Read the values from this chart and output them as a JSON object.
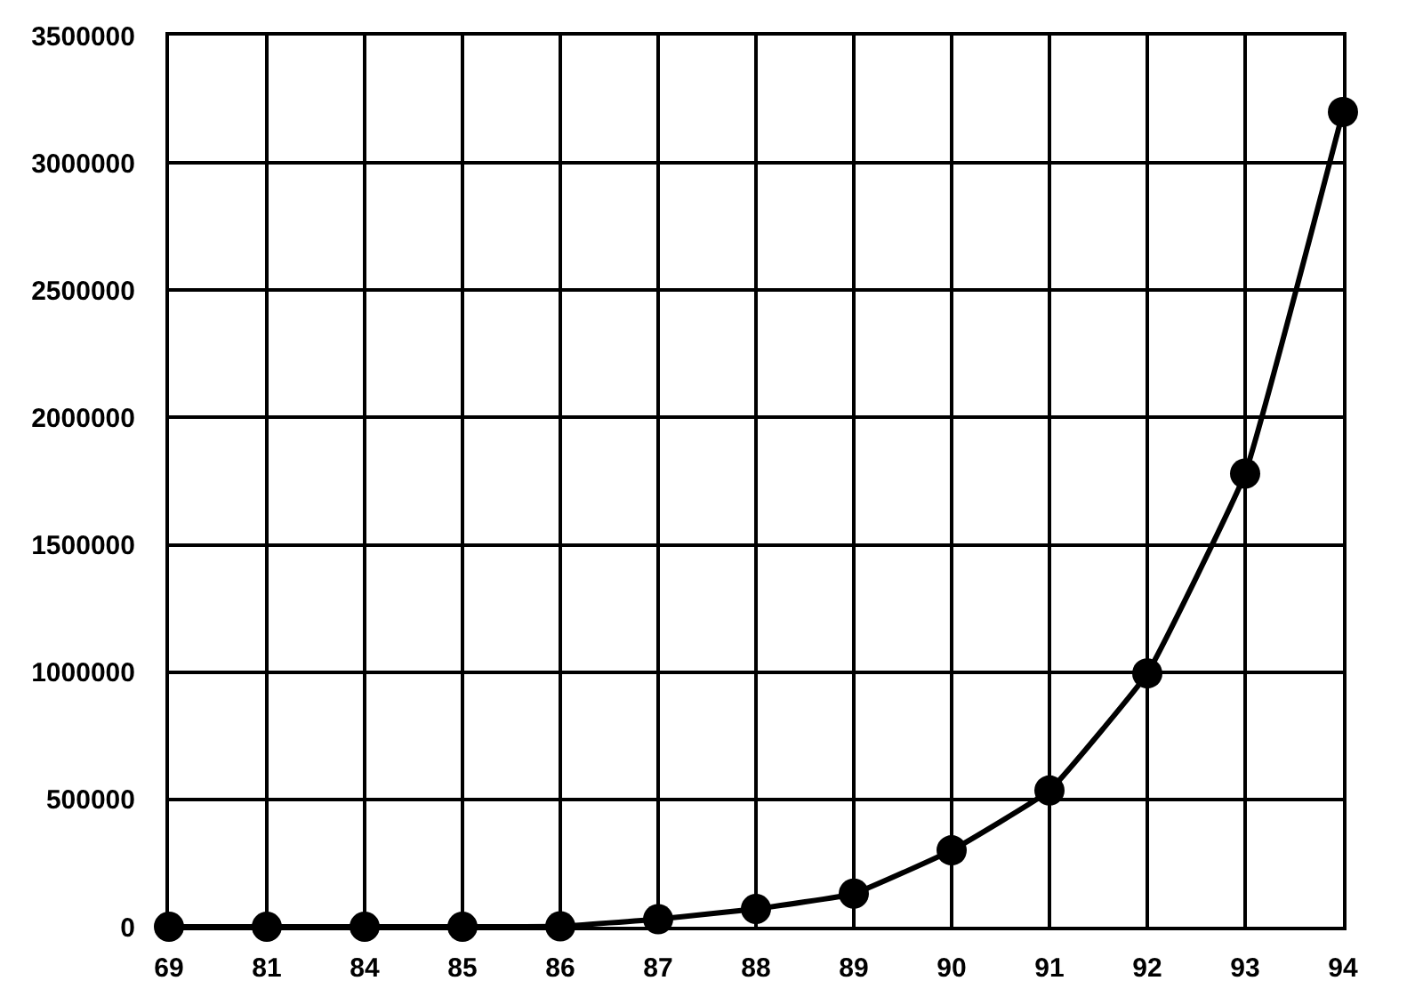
{
  "chart_data": {
    "type": "line",
    "categories": [
      "69",
      "81",
      "84",
      "85",
      "86",
      "87",
      "88",
      "89",
      "90",
      "91",
      "92",
      "93",
      "94"
    ],
    "series": [
      {
        "color": "#000000",
        "values": [
          0,
          0,
          0,
          0,
          2000,
          30000,
          70000,
          130000,
          300000,
          535000,
          995000,
          1780000,
          3200000
        ]
      }
    ],
    "ylim": [
      0,
      3500000
    ],
    "yticks": [
      0,
      500000,
      1000000,
      1500000,
      2000000,
      2500000,
      3000000,
      3500000
    ],
    "grid": true,
    "marker": "circle",
    "line_style": "solid",
    "legend": false
  }
}
